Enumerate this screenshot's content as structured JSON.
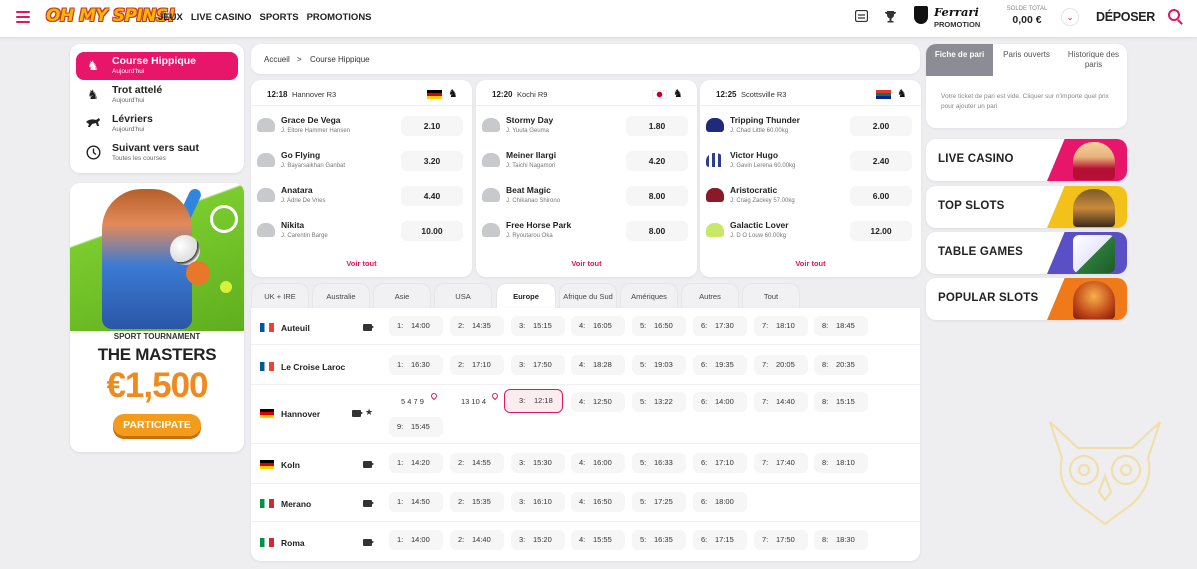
{
  "header": {
    "logo": "OH MY SPINS!",
    "nav": [
      "JEUX",
      "LIVE CASINO",
      "SPORTS",
      "PROMOTIONS"
    ],
    "ferrari_name": "Ferrari",
    "ferrari_sub": "PROMOTION",
    "balance_label": "SOLDE TOTAL",
    "balance": "0,00 €",
    "deposit_label": "DÉPOSER",
    "icons": [
      "menu-icon",
      "inbox-icon",
      "trophy-icon",
      "ferrari-shield-icon",
      "chevron-down-icon",
      "search-icon"
    ]
  },
  "sidebar": {
    "items": [
      {
        "title": "Course Hippique",
        "sub": "Aujourd'hui",
        "icon": "horse-icon",
        "active": true
      },
      {
        "title": "Trot attelé",
        "sub": "Aujourd'hui",
        "icon": "harness-icon",
        "active": false
      },
      {
        "title": "Lévriers",
        "sub": "Aujourd'hui",
        "icon": "greyhound-icon",
        "active": false
      },
      {
        "title": "Suivant vers saut",
        "sub": "Toutes les courses",
        "icon": "clock-icon",
        "active": false
      }
    ]
  },
  "promo": {
    "subtitle": "SPORT TOURNAMENT",
    "title": "THE MASTERS",
    "amount": "€1,500",
    "button": "PARTICIPATE"
  },
  "breadcrumb": {
    "home": "Accueil",
    "sep": ">",
    "current": "Course Hippique"
  },
  "races": [
    {
      "time": "12:18",
      "venue": "Hannover R3",
      "flag": "de",
      "runners": [
        {
          "name": "Grace De Vega",
          "jockey": "J. Eltore Hammer Hansen",
          "odds": "2.10"
        },
        {
          "name": "Go Flying",
          "jockey": "J. Bayarsaikhan Ganbat",
          "odds": "3.20"
        },
        {
          "name": "Anatara",
          "jockey": "J. Adrie De Vries",
          "odds": "4.40"
        },
        {
          "name": "Nikita",
          "jockey": "J. Carentin Barge",
          "odds": "10.00"
        }
      ],
      "see_all": "Voir tout"
    },
    {
      "time": "12:20",
      "venue": "Kochi R9",
      "flag": "jp",
      "runners": [
        {
          "name": "Stormy Day",
          "jockey": "J. Yuuta Geuma",
          "odds": "1.80"
        },
        {
          "name": "Meiner Ilargi",
          "jockey": "J. Taichi Nagamori",
          "odds": "4.20"
        },
        {
          "name": "Beat Magic",
          "jockey": "J. Chikanao Shirono",
          "odds": "8.00"
        },
        {
          "name": "Free Horse Park",
          "jockey": "J. Ryoutarou Oka",
          "odds": "8.00"
        }
      ],
      "see_all": "Voir tout"
    },
    {
      "time": "12:25",
      "venue": "Scottsville R3",
      "flag": "za",
      "runners": [
        {
          "name": "Tripping Thunder",
          "jockey": "J. Chad Little 60.00kg",
          "odds": "2.00"
        },
        {
          "name": "Victor Hugo",
          "jockey": "J. Gavin Lerena 60.00kg",
          "odds": "2.40"
        },
        {
          "name": "Aristocratic",
          "jockey": "J. Craig Zackey 57.00kg",
          "odds": "6.00"
        },
        {
          "name": "Galactic Lover",
          "jockey": "J. D O Louw 60.00kg",
          "odds": "12.00"
        }
      ],
      "see_all": "Voir tout"
    }
  ],
  "regions": [
    "UK + IRE",
    "Australie",
    "Asie",
    "USA",
    "Europe",
    "Afrique du Sud",
    "Amériques",
    "Autres",
    "Tout"
  ],
  "active_region": "Europe",
  "meetings": [
    {
      "name": "Auteuil",
      "flag": "fr",
      "races": [
        [
          "1:",
          "14:00"
        ],
        [
          "2:",
          "14:35"
        ],
        [
          "3:",
          "15:15"
        ],
        [
          "4:",
          "16:05"
        ],
        [
          "5:",
          "16:50"
        ],
        [
          "6:",
          "17:30"
        ],
        [
          "7:",
          "18:10"
        ],
        [
          "8:",
          "18:45"
        ]
      ]
    },
    {
      "name": "Le Croise Laroc",
      "flag": "fr",
      "races": [
        [
          "1:",
          "16:30"
        ],
        [
          "2:",
          "17:10"
        ],
        [
          "3:",
          "17:50"
        ],
        [
          "4:",
          "18:28"
        ],
        [
          "5:",
          "19:03"
        ],
        [
          "6:",
          "19:35"
        ],
        [
          "7:",
          "20:05"
        ],
        [
          "8:",
          "20:35"
        ]
      ]
    },
    {
      "name": "Hannover",
      "flag": "de",
      "results": [
        "5 4 7 9",
        "13 10 4"
      ],
      "races": [
        [
          "3:",
          "12:18"
        ],
        [
          "4:",
          "12:50"
        ],
        [
          "5:",
          "13:22"
        ],
        [
          "6:",
          "14:00"
        ],
        [
          "7:",
          "14:40"
        ],
        [
          "8:",
          "15:15"
        ],
        [
          "9:",
          "15:45"
        ]
      ]
    },
    {
      "name": "Koln",
      "flag": "de",
      "races": [
        [
          "1:",
          "14:20"
        ],
        [
          "2:",
          "14:55"
        ],
        [
          "3:",
          "15:30"
        ],
        [
          "4:",
          "16:00"
        ],
        [
          "5:",
          "16:33"
        ],
        [
          "6:",
          "17:10"
        ],
        [
          "7:",
          "17:40"
        ],
        [
          "8:",
          "18:10"
        ]
      ]
    },
    {
      "name": "Merano",
      "flag": "it",
      "races": [
        [
          "1:",
          "14:50"
        ],
        [
          "2:",
          "15:35"
        ],
        [
          "3:",
          "16:10"
        ],
        [
          "4:",
          "16:50"
        ],
        [
          "5:",
          "17:25"
        ],
        [
          "6:",
          "18:00"
        ]
      ]
    },
    {
      "name": "Roma",
      "flag": "it",
      "races": [
        [
          "1:",
          "14:00"
        ],
        [
          "2:",
          "14:40"
        ],
        [
          "3:",
          "15:20"
        ],
        [
          "4:",
          "15:55"
        ],
        [
          "5:",
          "16:35"
        ],
        [
          "6:",
          "17:15"
        ],
        [
          "7:",
          "17:50"
        ],
        [
          "8:",
          "18:30"
        ]
      ]
    }
  ],
  "betslip": {
    "tabs": [
      "Fiche de pari",
      "Paris ouverts",
      "Historique des paris"
    ],
    "message": "Votre ticket de pari est vide. Cliquer sur n'importe quel prix pour ajouter un pari"
  },
  "categories": [
    {
      "label": "LIVE CASINO",
      "color": "#e8166b"
    },
    {
      "label": "TOP SLOTS",
      "color": "#f2c21a"
    },
    {
      "label": "TABLE GAMES",
      "color": "#5b4fc6"
    },
    {
      "label": "POPULAR SLOTS",
      "color": "#f07a1a"
    }
  ],
  "colors": {
    "accent": "#e2165f",
    "promo_orange": "#ef8a1e",
    "background": "#eeeef0"
  }
}
